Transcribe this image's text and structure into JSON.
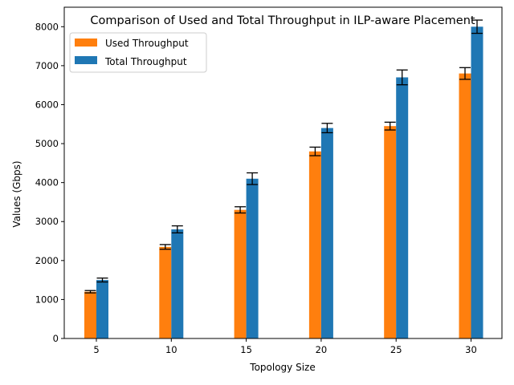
{
  "chart_data": {
    "type": "bar",
    "title": "Comparison of Used and Total Throughput in ILP-aware Placement",
    "xlabel": "Topology Size",
    "ylabel": "Values (Gbps)",
    "categories": [
      "5",
      "10",
      "15",
      "20",
      "25",
      "30"
    ],
    "series": [
      {
        "name": "Used Throughput",
        "color": "#ff7f0e",
        "values": [
          1200,
          2350,
          3300,
          4800,
          5450,
          6800
        ],
        "errors": [
          30,
          60,
          80,
          110,
          100,
          150
        ]
      },
      {
        "name": "Total Throughput",
        "color": "#1f77b4",
        "values": [
          1500,
          2800,
          4100,
          5400,
          6700,
          8000
        ],
        "errors": [
          50,
          90,
          150,
          120,
          190,
          170
        ]
      }
    ],
    "ylim": [
      0,
      8500
    ],
    "yticks": [
      0,
      1000,
      2000,
      3000,
      4000,
      5000,
      6000,
      7000,
      8000
    ],
    "legend": "top-left",
    "grid": false
  }
}
